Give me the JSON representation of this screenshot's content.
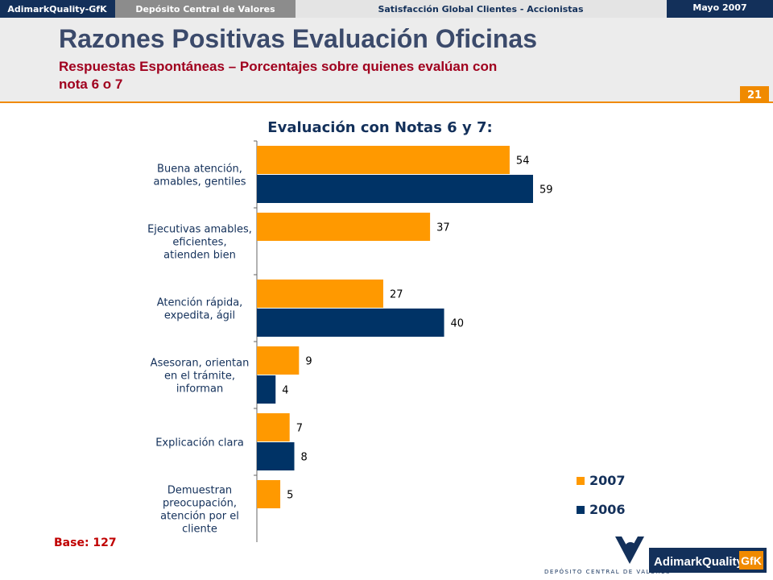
{
  "header": {
    "brand": "AdimarkQuality-GfK",
    "client": "Depósito Central de Valores",
    "study": "Satisfacción Global Clientes - Accionistas",
    "date": "Mayo 2007"
  },
  "slide": {
    "title": "Razones Positivas Evaluación Oficinas",
    "subtitle": "Respuestas Espontáneas – Porcentajes sobre quienes evalúan con\nnota 6 o 7",
    "page": "21",
    "base": "Base: 127"
  },
  "chart_data": {
    "type": "bar",
    "orientation": "horizontal",
    "title": "Evaluación con Notas 6 y 7:",
    "categories": [
      "Buena atención,\namables, gentiles",
      "Ejecutivas amables,\neficientes,\natienden bien",
      "Atención rápida,\nexpedita, ágil",
      "Asesoran, orientan\nen el trámite,\ninforman",
      "Explicación clara",
      "Demuestran\npreocupación,\natención por el\ncliente"
    ],
    "series": [
      {
        "name": "2007",
        "color": "#ff9900",
        "values": [
          54,
          37,
          27,
          9,
          7,
          5
        ]
      },
      {
        "name": "2006",
        "color": "#003366",
        "values": [
          59,
          null,
          40,
          4,
          8,
          null
        ]
      }
    ],
    "legend": "bottom-right"
  },
  "logos": {
    "dcv": "Depósito Central de Valores",
    "adimark": "AdimarkQuality",
    "gfk": "GfK"
  }
}
